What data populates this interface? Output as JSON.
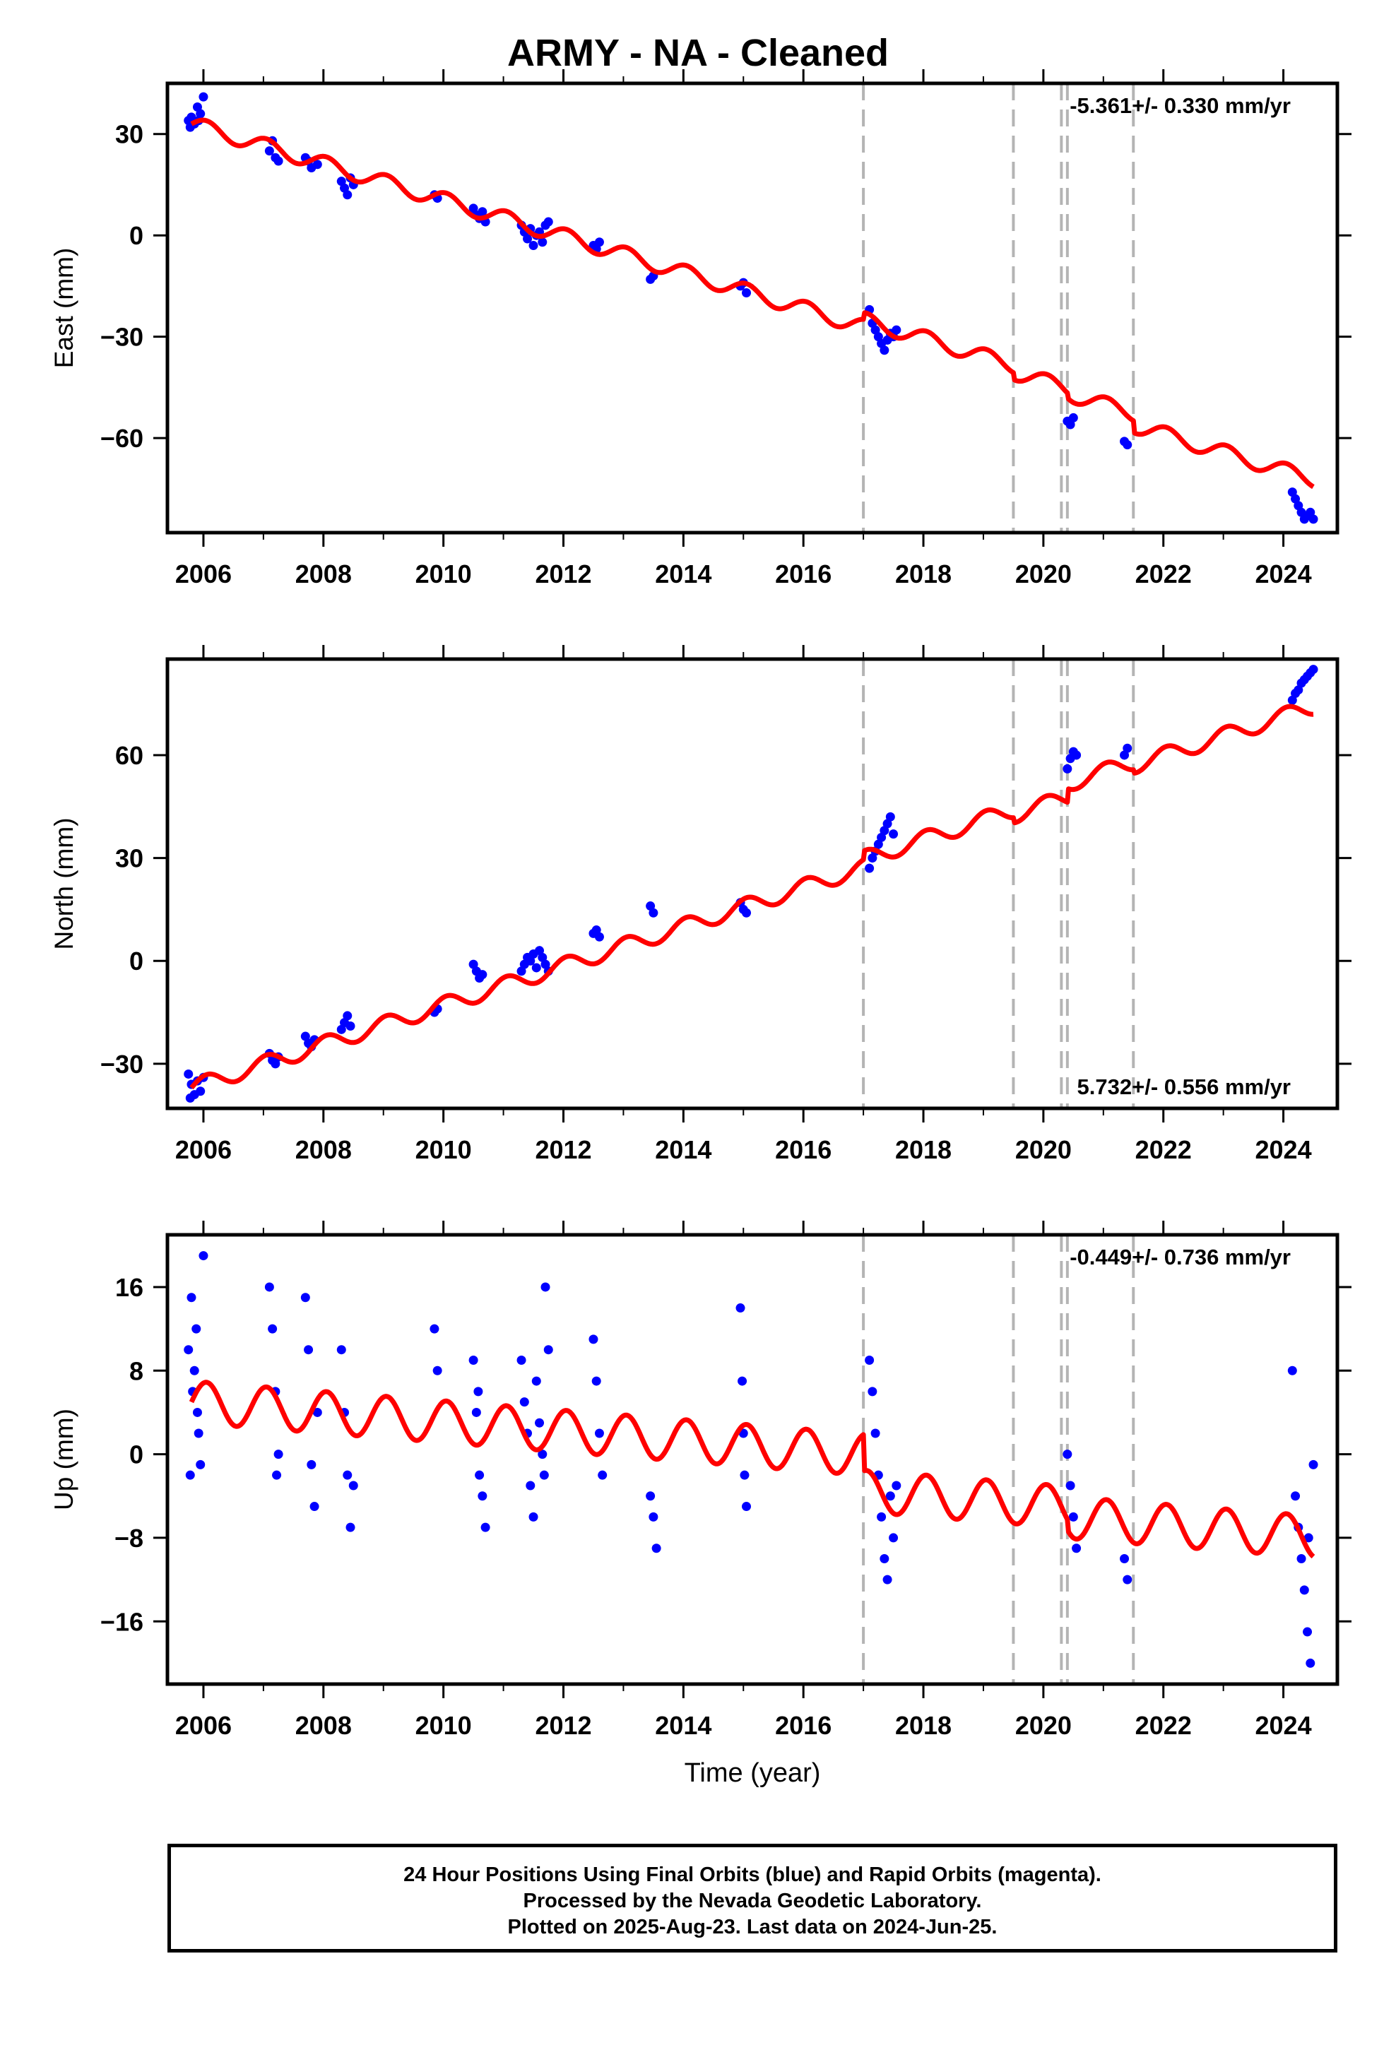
{
  "title": "ARMY  - NA - Cleaned",
  "footer": {
    "line1": "24 Hour Positions Using Final Orbits (blue) and Rapid Orbits (magenta).",
    "line2": "Processed by the Nevada Geodetic Laboratory.",
    "line3": "Plotted on 2025-Aug-23. Last data on 2024-Jun-25."
  },
  "colors": {
    "data_points": "#0000ff",
    "model_line": "#ff0000",
    "steps": "#b4b4b4"
  },
  "chart_data": [
    {
      "type": "scatter",
      "ylabel": "East (mm)",
      "xlabel": "",
      "rate_text": "-5.361+/- 0.330 mm/yr",
      "rate_position": "top-right",
      "xlim": [
        2005.4,
        2024.9
      ],
      "ylim": [
        -88,
        45
      ],
      "xticks": [
        "2006",
        "2008",
        "2010",
        "2012",
        "2014",
        "2016",
        "2018",
        "2020",
        "2022",
        "2024"
      ],
      "yticks": [
        "30",
        "0",
        "−30",
        "−60"
      ],
      "ytick_values": [
        30,
        0,
        -30,
        -60
      ],
      "steps": [
        2017.0,
        2019.5,
        2020.3,
        2020.4,
        2021.5
      ],
      "model": {
        "rate": -5.361,
        "intercept": 33.0,
        "t0": 2005.8,
        "amplitude": 2.3,
        "jumps": [
          [
            2017.0,
            2.0
          ],
          [
            2019.5,
            -2.0
          ],
          [
            2020.4,
            -1.5
          ],
          [
            2021.5,
            -3.5
          ]
        ]
      },
      "points": [
        [
          2005.75,
          34
        ],
        [
          2005.8,
          35
        ],
        [
          2005.85,
          33
        ],
        [
          2005.9,
          38
        ],
        [
          2005.95,
          36
        ],
        [
          2006.0,
          41
        ],
        [
          2005.78,
          32
        ],
        [
          2005.92,
          34
        ],
        [
          2007.1,
          25
        ],
        [
          2007.15,
          28
        ],
        [
          2007.2,
          23
        ],
        [
          2007.25,
          22
        ],
        [
          2007.7,
          23
        ],
        [
          2007.75,
          22
        ],
        [
          2007.8,
          20
        ],
        [
          2007.9,
          21
        ],
        [
          2008.3,
          16
        ],
        [
          2008.35,
          14
        ],
        [
          2008.4,
          12
        ],
        [
          2008.45,
          17
        ],
        [
          2008.5,
          15
        ],
        [
          2009.85,
          12
        ],
        [
          2009.9,
          11
        ],
        [
          2010.5,
          8
        ],
        [
          2010.55,
          6
        ],
        [
          2010.6,
          5
        ],
        [
          2010.65,
          7
        ],
        [
          2010.7,
          4
        ],
        [
          2011.3,
          3
        ],
        [
          2011.35,
          1
        ],
        [
          2011.4,
          -1
        ],
        [
          2011.45,
          2
        ],
        [
          2011.5,
          -3
        ],
        [
          2011.55,
          0
        ],
        [
          2011.6,
          1
        ],
        [
          2011.65,
          -2
        ],
        [
          2011.7,
          3
        ],
        [
          2011.75,
          4
        ],
        [
          2012.5,
          -3
        ],
        [
          2012.55,
          -4
        ],
        [
          2012.6,
          -2
        ],
        [
          2013.45,
          -13
        ],
        [
          2013.5,
          -12
        ],
        [
          2014.95,
          -15
        ],
        [
          2015.0,
          -14
        ],
        [
          2015.05,
          -17
        ],
        [
          2017.1,
          -22
        ],
        [
          2017.15,
          -26
        ],
        [
          2017.2,
          -28
        ],
        [
          2017.25,
          -30
        ],
        [
          2017.3,
          -32
        ],
        [
          2017.35,
          -34
        ],
        [
          2017.4,
          -31
        ],
        [
          2017.45,
          -29
        ],
        [
          2017.5,
          -30
        ],
        [
          2017.55,
          -28
        ],
        [
          2020.4,
          -55
        ],
        [
          2020.45,
          -56
        ],
        [
          2020.5,
          -54
        ],
        [
          2021.35,
          -61
        ],
        [
          2021.4,
          -62
        ],
        [
          2024.15,
          -76
        ],
        [
          2024.2,
          -78
        ],
        [
          2024.25,
          -80
        ],
        [
          2024.3,
          -82
        ],
        [
          2024.35,
          -84
        ],
        [
          2024.4,
          -83
        ],
        [
          2024.45,
          -82
        ],
        [
          2024.5,
          -84
        ]
      ]
    },
    {
      "type": "scatter",
      "ylabel": "North (mm)",
      "xlabel": "",
      "rate_text": "5.732+/- 0.556 mm/yr",
      "rate_position": "bottom-right",
      "xlim": [
        2005.4,
        2024.9
      ],
      "ylim": [
        -43,
        88
      ],
      "xticks": [
        "2006",
        "2008",
        "2010",
        "2012",
        "2014",
        "2016",
        "2018",
        "2020",
        "2022",
        "2024"
      ],
      "yticks": [
        "60",
        "30",
        "0",
        "−30"
      ],
      "ytick_values": [
        60,
        30,
        0,
        -30
      ],
      "steps": [
        2017.0,
        2019.5,
        2020.3,
        2020.4,
        2021.5
      ],
      "model": {
        "rate": 5.732,
        "intercept": -37.0,
        "t0": 2005.8,
        "amplitude": 2.4,
        "jumps": [
          [
            2017.0,
            2.5
          ],
          [
            2019.5,
            -1.5
          ],
          [
            2020.4,
            4.0
          ],
          [
            2021.5,
            -1.0
          ]
        ]
      },
      "points": [
        [
          2005.75,
          -33
        ],
        [
          2005.8,
          -36
        ],
        [
          2005.85,
          -39
        ],
        [
          2005.9,
          -35
        ],
        [
          2005.95,
          -38
        ],
        [
          2006.0,
          -34
        ],
        [
          2005.78,
          -40
        ],
        [
          2007.1,
          -27
        ],
        [
          2007.15,
          -29
        ],
        [
          2007.2,
          -30
        ],
        [
          2007.25,
          -28
        ],
        [
          2007.7,
          -22
        ],
        [
          2007.75,
          -24
        ],
        [
          2007.8,
          -25
        ],
        [
          2007.85,
          -23
        ],
        [
          2008.3,
          -20
        ],
        [
          2008.35,
          -18
        ],
        [
          2008.4,
          -16
        ],
        [
          2008.45,
          -19
        ],
        [
          2009.85,
          -15
        ],
        [
          2009.9,
          -14
        ],
        [
          2010.5,
          -1
        ],
        [
          2010.55,
          -3
        ],
        [
          2010.6,
          -5
        ],
        [
          2010.65,
          -4
        ],
        [
          2011.3,
          -3
        ],
        [
          2011.35,
          -1
        ],
        [
          2011.4,
          1
        ],
        [
          2011.45,
          0
        ],
        [
          2011.5,
          2
        ],
        [
          2011.55,
          -2
        ],
        [
          2011.6,
          3
        ],
        [
          2011.65,
          1
        ],
        [
          2011.7,
          -1
        ],
        [
          2011.75,
          -3
        ],
        [
          2012.5,
          8
        ],
        [
          2012.55,
          9
        ],
        [
          2012.6,
          7
        ],
        [
          2013.45,
          16
        ],
        [
          2013.5,
          14
        ],
        [
          2014.95,
          17
        ],
        [
          2015.0,
          15
        ],
        [
          2015.05,
          14
        ],
        [
          2017.1,
          27
        ],
        [
          2017.15,
          30
        ],
        [
          2017.2,
          32
        ],
        [
          2017.25,
          34
        ],
        [
          2017.3,
          36
        ],
        [
          2017.35,
          38
        ],
        [
          2017.4,
          40
        ],
        [
          2017.45,
          42
        ],
        [
          2017.5,
          37
        ],
        [
          2020.4,
          56
        ],
        [
          2020.45,
          59
        ],
        [
          2020.5,
          61
        ],
        [
          2020.55,
          60
        ],
        [
          2021.35,
          60
        ],
        [
          2021.4,
          62
        ],
        [
          2024.15,
          76
        ],
        [
          2024.2,
          78
        ],
        [
          2024.25,
          79
        ],
        [
          2024.3,
          81
        ],
        [
          2024.35,
          82
        ],
        [
          2024.4,
          83
        ],
        [
          2024.45,
          84
        ],
        [
          2024.5,
          85
        ]
      ]
    },
    {
      "type": "scatter",
      "ylabel": "Up (mm)",
      "xlabel": "Time (year)",
      "rate_text": "-0.449+/- 0.736 mm/yr",
      "rate_position": "top-right",
      "xlim": [
        2005.4,
        2024.9
      ],
      "ylim": [
        -22,
        21
      ],
      "xticks": [
        "2006",
        "2008",
        "2010",
        "2012",
        "2014",
        "2016",
        "2018",
        "2020",
        "2022",
        "2024"
      ],
      "yticks": [
        "16",
        "8",
        "0",
        "−8",
        "−16"
      ],
      "ytick_values": [
        16,
        8,
        0,
        -8,
        -16
      ],
      "steps": [
        2017.0,
        2019.5,
        2020.3,
        2020.4,
        2021.5
      ],
      "model": {
        "rate": -0.449,
        "intercept": 5.0,
        "t0": 2005.8,
        "amplitude": 2.0,
        "jumps": [
          [
            2017.0,
            -3.5
          ],
          [
            2020.4,
            -1.0
          ]
        ]
      },
      "points": [
        [
          2005.75,
          10
        ],
        [
          2005.8,
          15
        ],
        [
          2005.85,
          8
        ],
        [
          2005.9,
          4
        ],
        [
          2005.95,
          -1
        ],
        [
          2006.0,
          19
        ],
        [
          2005.78,
          -2
        ],
        [
          2005.82,
          6
        ],
        [
          2005.88,
          12
        ],
        [
          2005.92,
          2
        ],
        [
          2007.1,
          16
        ],
        [
          2007.15,
          12
        ],
        [
          2007.2,
          6
        ],
        [
          2007.25,
          0
        ],
        [
          2007.22,
          -2
        ],
        [
          2007.7,
          15
        ],
        [
          2007.75,
          10
        ],
        [
          2007.8,
          -1
        ],
        [
          2007.85,
          -5
        ],
        [
          2007.9,
          4
        ],
        [
          2008.3,
          10
        ],
        [
          2008.35,
          4
        ],
        [
          2008.4,
          -2
        ],
        [
          2008.45,
          -7
        ],
        [
          2008.5,
          -3
        ],
        [
          2009.85,
          12
        ],
        [
          2009.9,
          8
        ],
        [
          2010.5,
          9
        ],
        [
          2010.55,
          4
        ],
        [
          2010.6,
          -2
        ],
        [
          2010.65,
          -4
        ],
        [
          2010.7,
          -7
        ],
        [
          2010.58,
          6
        ],
        [
          2011.3,
          9
        ],
        [
          2011.35,
          5
        ],
        [
          2011.4,
          2
        ],
        [
          2011.45,
          -3
        ],
        [
          2011.5,
          -6
        ],
        [
          2011.55,
          7
        ],
        [
          2011.6,
          3
        ],
        [
          2011.65,
          0
        ],
        [
          2011.7,
          16
        ],
        [
          2011.75,
          10
        ],
        [
          2011.68,
          -2
        ],
        [
          2012.5,
          11
        ],
        [
          2012.55,
          7
        ],
        [
          2012.6,
          2
        ],
        [
          2012.65,
          -2
        ],
        [
          2013.45,
          -4
        ],
        [
          2013.5,
          -6
        ],
        [
          2013.55,
          -9
        ],
        [
          2014.95,
          14
        ],
        [
          2014.98,
          7
        ],
        [
          2015.0,
          2
        ],
        [
          2015.02,
          -2
        ],
        [
          2015.05,
          -5
        ],
        [
          2017.1,
          9
        ],
        [
          2017.15,
          6
        ],
        [
          2017.2,
          2
        ],
        [
          2017.25,
          -2
        ],
        [
          2017.3,
          -6
        ],
        [
          2017.35,
          -10
        ],
        [
          2017.4,
          -12
        ],
        [
          2017.45,
          -4
        ],
        [
          2017.5,
          -8
        ],
        [
          2017.55,
          -3
        ],
        [
          2020.4,
          0
        ],
        [
          2020.45,
          -3
        ],
        [
          2020.5,
          -6
        ],
        [
          2020.55,
          -9
        ],
        [
          2021.35,
          -10
        ],
        [
          2021.4,
          -12
        ],
        [
          2024.15,
          8
        ],
        [
          2024.2,
          -4
        ],
        [
          2024.25,
          -7
        ],
        [
          2024.3,
          -10
        ],
        [
          2024.35,
          -13
        ],
        [
          2024.4,
          -17
        ],
        [
          2024.45,
          -20
        ],
        [
          2024.5,
          -1
        ],
        [
          2024.42,
          -8
        ]
      ]
    }
  ]
}
